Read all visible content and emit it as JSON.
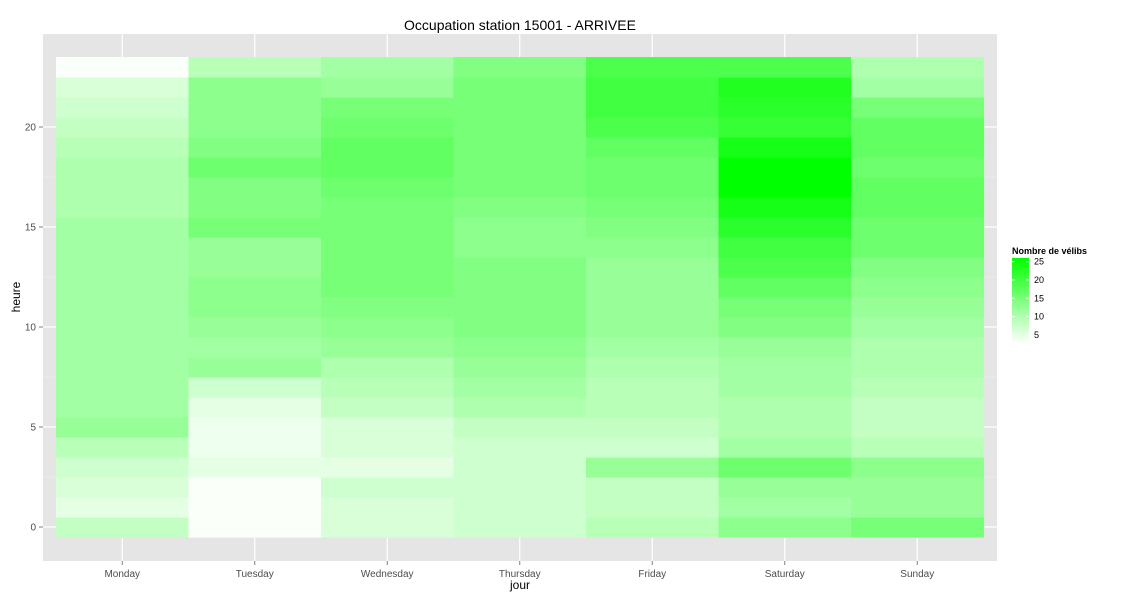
{
  "chart_data": {
    "type": "heatmap",
    "title": "Occupation station 15001 - ARRIVEE",
    "xlabel": "jour",
    "ylabel": "heure",
    "x_categories": [
      "Monday",
      "Tuesday",
      "Wednesday",
      "Thursday",
      "Friday",
      "Saturday",
      "Sunday"
    ],
    "y_values": [
      0,
      1,
      2,
      3,
      4,
      5,
      6,
      7,
      8,
      9,
      10,
      11,
      12,
      13,
      14,
      15,
      16,
      17,
      18,
      19,
      20,
      21,
      22,
      23
    ],
    "y_ticks": [
      0,
      5,
      10,
      15,
      20
    ],
    "y_range": [
      -0.5,
      23.5
    ],
    "grid": true,
    "legend": {
      "title": "Nombre de vélibs",
      "position": "right",
      "min": 2.5,
      "max": 26,
      "ticks": [
        5,
        10,
        15,
        20,
        25
      ],
      "low_color": "#ffffff",
      "high_color": "#00ff00"
    },
    "colors": {
      "panel_background": "#e5e5e5",
      "grid": "#ffffff",
      "low": "#ffffff",
      "high": "#00ff00"
    },
    "values": [
      [
        8,
        5,
        6,
        7,
        9,
        12,
        11,
        11,
        11,
        11,
        11,
        11,
        11,
        11,
        11,
        11,
        10,
        10,
        10,
        9,
        8,
        7,
        6,
        3
      ],
      [
        3,
        3,
        3,
        5,
        4,
        4,
        5,
        7,
        12,
        11,
        12,
        13,
        13,
        12,
        12,
        15,
        14,
        14,
        16,
        14,
        13,
        13,
        13,
        9
      ],
      [
        6,
        6,
        7,
        5,
        6,
        6,
        8,
        9,
        10,
        12,
        13,
        14,
        15,
        15,
        15,
        15,
        15,
        16,
        17,
        17,
        16,
        15,
        12,
        11
      ],
      [
        7,
        7,
        7,
        7,
        7,
        8,
        10,
        11,
        12,
        13,
        14,
        14,
        14,
        14,
        13,
        13,
        14,
        15,
        15,
        15,
        15,
        15,
        15,
        14
      ],
      [
        9,
        8,
        8,
        12,
        7,
        8,
        9,
        9,
        10,
        11,
        12,
        12,
        12,
        12,
        13,
        14,
        15,
        16,
        16,
        17,
        19,
        20,
        20,
        19
      ],
      [
        13,
        11,
        12,
        16,
        11,
        10,
        10,
        11,
        11,
        12,
        14,
        15,
        17,
        19,
        20,
        22,
        24,
        26,
        26,
        24,
        21,
        22,
        23,
        19
      ],
      [
        15,
        12,
        12,
        13,
        9,
        8,
        8,
        9,
        10,
        10,
        11,
        12,
        13,
        14,
        16,
        16,
        17,
        17,
        16,
        17,
        17,
        15,
        11,
        10
      ]
    ]
  }
}
